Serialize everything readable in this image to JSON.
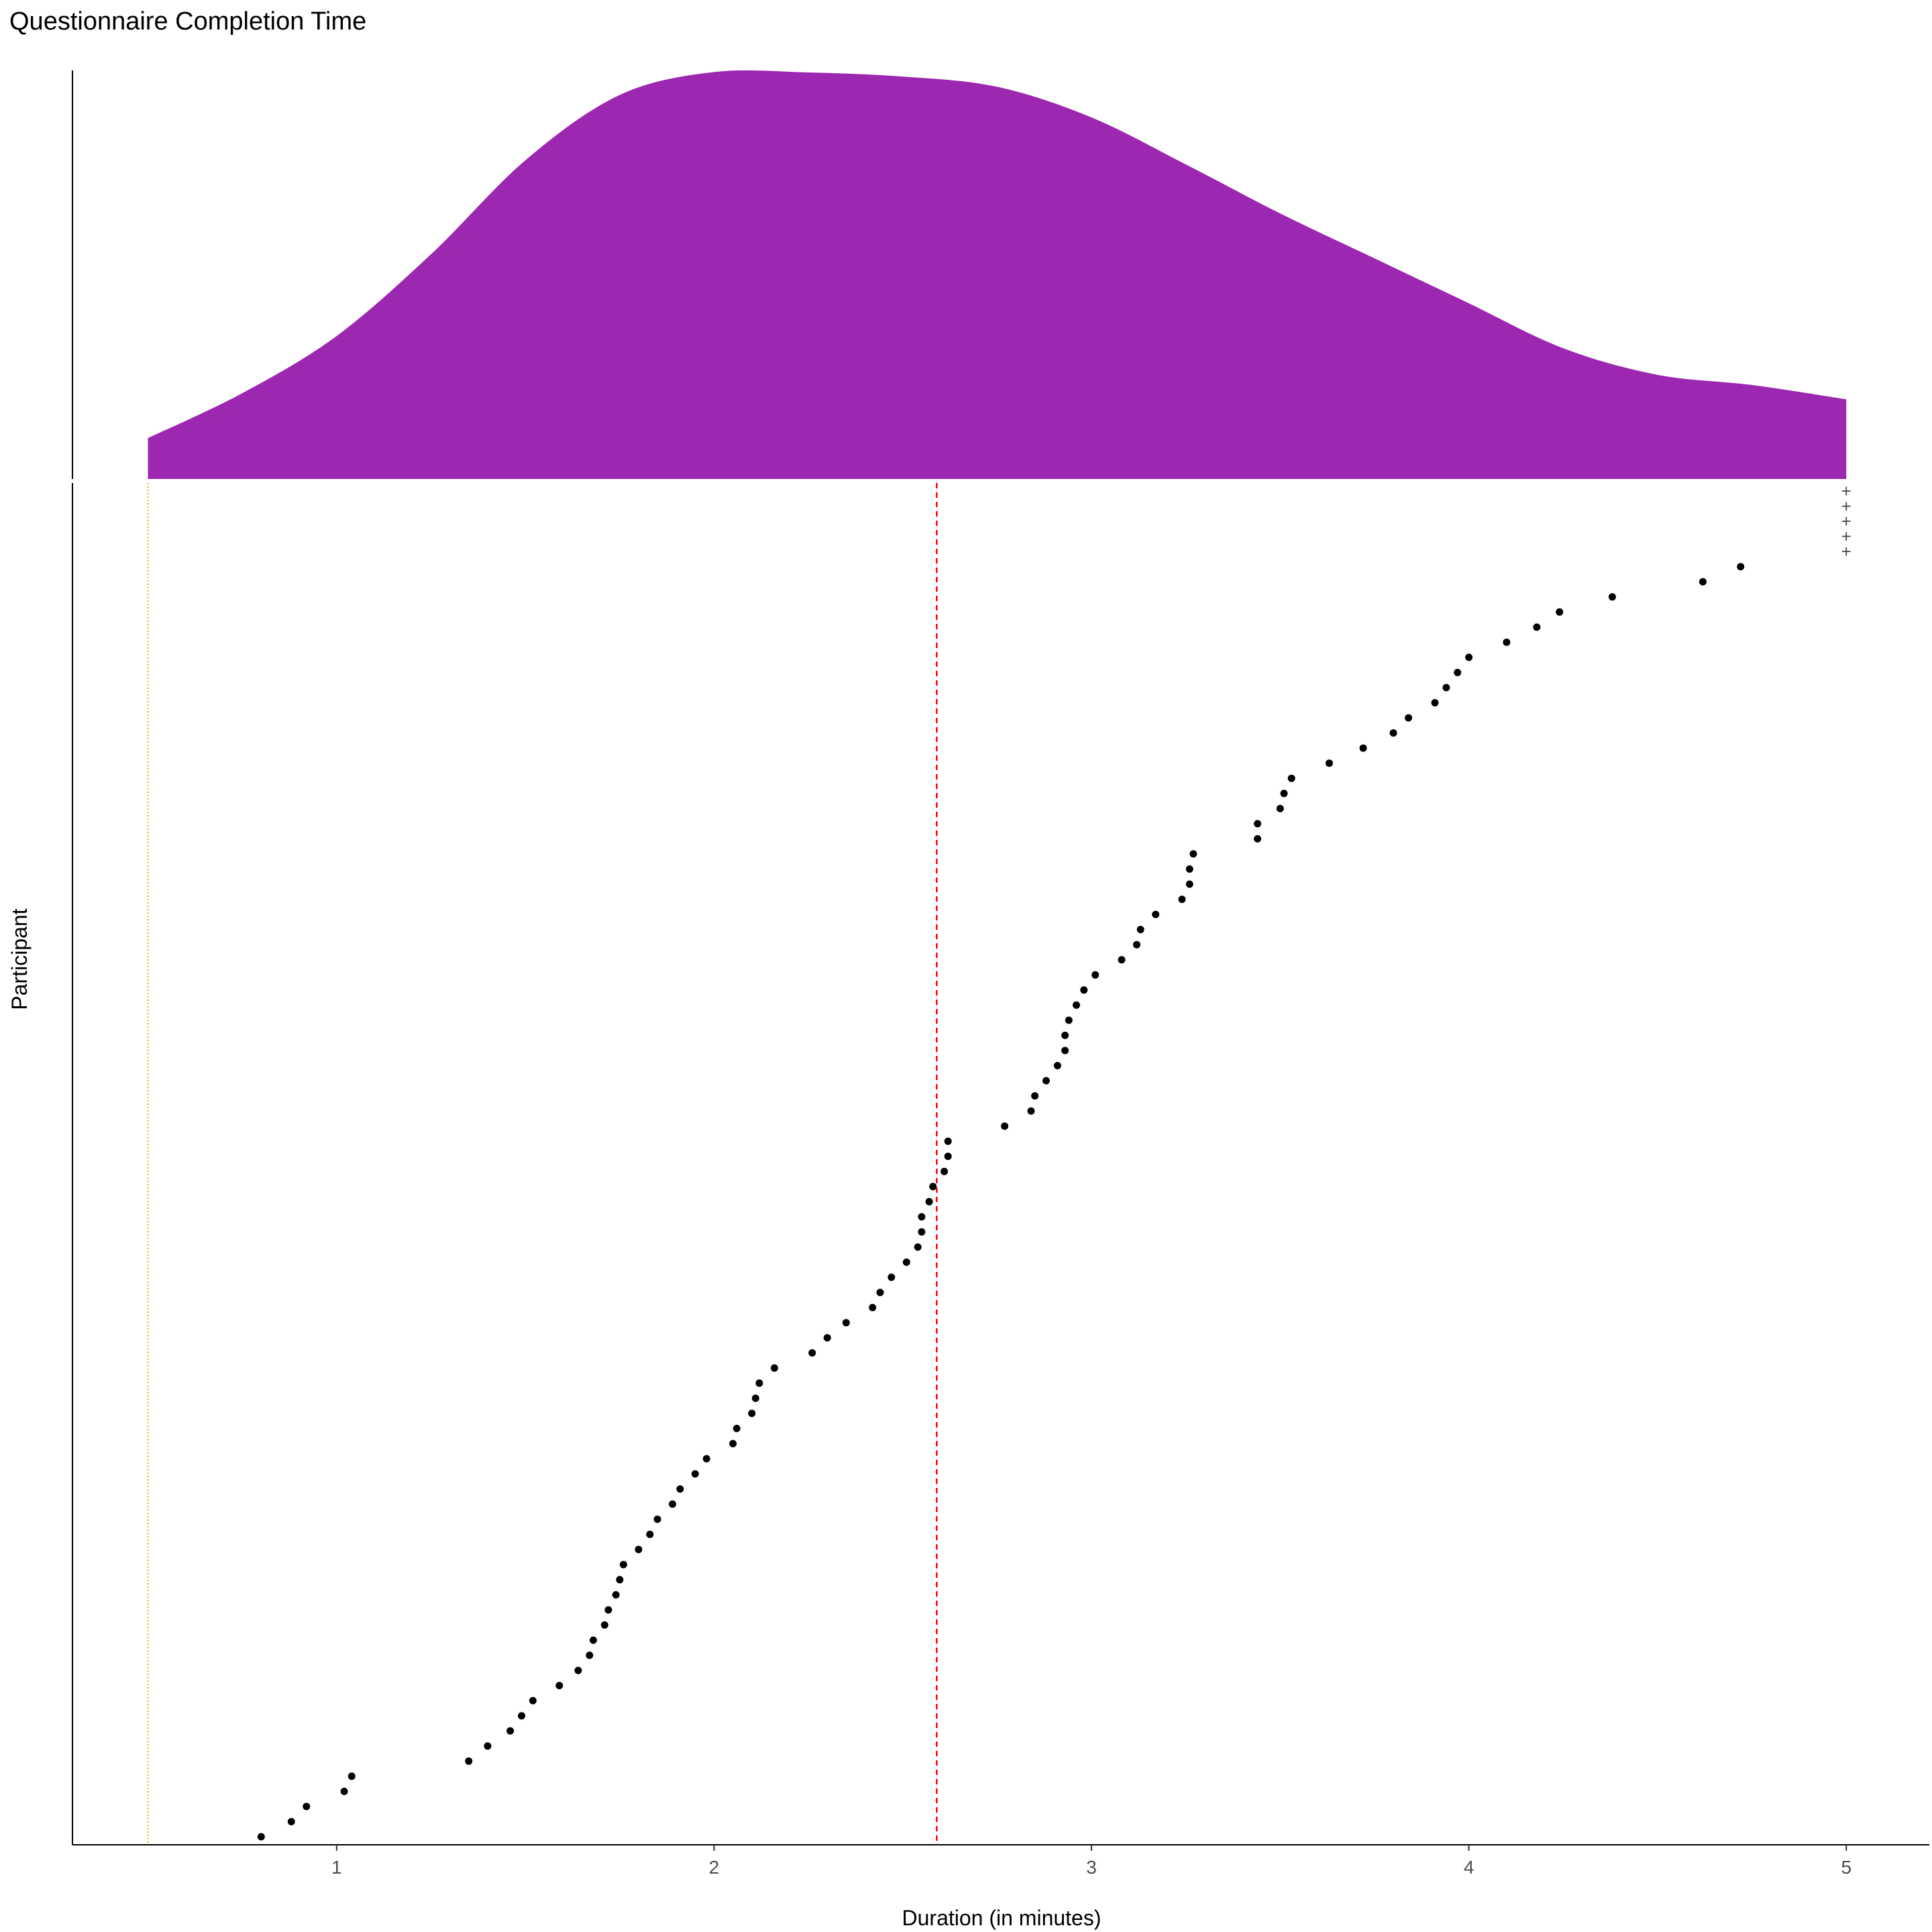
{
  "chart_data": {
    "type": "scatter",
    "title": "Questionnaire Completion Time",
    "xlabel": "Duration (in minutes)",
    "ylabel": "Participant",
    "xlim": [
      0.3,
      5.22
    ],
    "x_ticks": [
      1,
      2,
      3,
      4,
      5
    ],
    "grid": false,
    "colors": {
      "density_fill": "#9C27B0",
      "median_line": "#FF0000",
      "min_line": "#FFA500",
      "points": "#000000",
      "axis": "#000000"
    },
    "reference_lines": {
      "median": 2.59,
      "minimum": 0.5
    },
    "density": {
      "x": [
        0.5,
        0.75,
        1.0,
        1.25,
        1.5,
        1.75,
        2.0,
        2.25,
        2.5,
        2.75,
        3.0,
        3.25,
        3.5,
        3.75,
        4.0,
        4.25,
        4.5,
        4.75,
        5.0
      ],
      "y": [
        0.1,
        0.21,
        0.35,
        0.55,
        0.78,
        0.94,
        0.996,
        0.995,
        0.985,
        0.96,
        0.885,
        0.77,
        0.65,
        0.54,
        0.43,
        0.32,
        0.255,
        0.23,
        0.195
      ]
    },
    "points": {
      "x": [
        0.8,
        0.88,
        0.92,
        1.02,
        1.04,
        1.35,
        1.4,
        1.46,
        1.49,
        1.52,
        1.59,
        1.64,
        1.67,
        1.68,
        1.71,
        1.72,
        1.74,
        1.75,
        1.76,
        1.8,
        1.83,
        1.85,
        1.89,
        1.91,
        1.95,
        1.98,
        2.05,
        2.06,
        2.1,
        2.11,
        2.12,
        2.16,
        2.26,
        2.3,
        2.35,
        2.42,
        2.44,
        2.47,
        2.51,
        2.54,
        2.55,
        2.55,
        2.57,
        2.58,
        2.61,
        2.62,
        2.62,
        2.77,
        2.84,
        2.85,
        2.88,
        2.91,
        2.93,
        2.93,
        2.94,
        2.96,
        2.98,
        3.01,
        3.08,
        3.12,
        3.13,
        3.17,
        3.24,
        3.26,
        3.26,
        3.27,
        3.44,
        3.44,
        3.5,
        3.51,
        3.53,
        3.63,
        3.72,
        3.8,
        3.84,
        3.91,
        3.94,
        3.97,
        4.0,
        4.1,
        4.18,
        4.24,
        4.38,
        4.62,
        4.72
      ],
      "censored_count": 5,
      "censored_value": 5.0,
      "censored_marker": "+"
    }
  }
}
